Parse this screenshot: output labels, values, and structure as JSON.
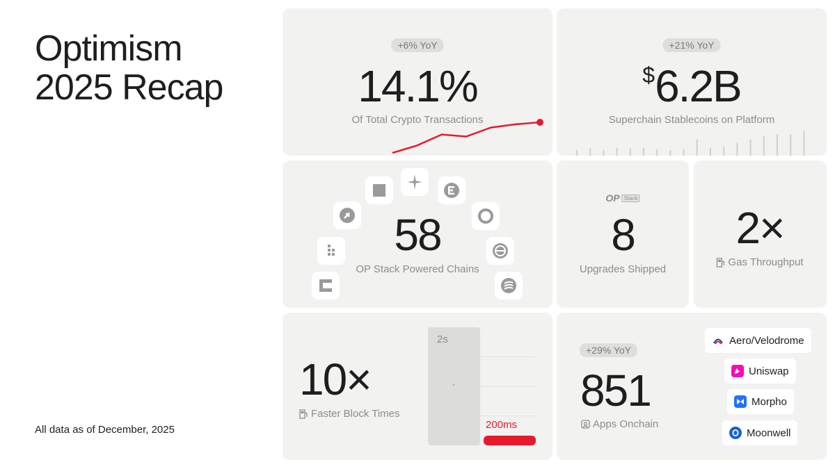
{
  "page": {
    "title_line1": "Optimism",
    "title_line2": "2025 Recap",
    "footnote": "All data as of December, 2025"
  },
  "colors": {
    "accent": "#e8192c",
    "card_bg": "#f2f2f1",
    "pill_bg": "#dededc"
  },
  "transactions": {
    "badge": "+6% YoY",
    "value": "14.1%",
    "label": "Of Total Crypto Transactions",
    "trend": [
      0.0,
      0.18,
      0.45,
      0.4,
      0.62,
      0.7,
      0.75
    ]
  },
  "stablecoins": {
    "badge": "+21% YoY",
    "currency": "$",
    "value": "6.2B",
    "label": "Superchain Stablecoins on Platform",
    "bars": [
      0.15,
      0.2,
      0.15,
      0.22,
      0.2,
      0.22,
      0.18,
      0.15,
      0.18,
      0.45,
      0.22,
      0.25,
      0.35,
      0.45,
      0.55,
      0.6,
      0.6,
      0.7,
      0.75,
      1.0
    ]
  },
  "chains": {
    "value": "58",
    "label": "OP Stack Powered Chains",
    "icons": [
      "square-logo-icon",
      "sparkle-logo-icon",
      "e-circle-logo-icon",
      "ring-logo-icon",
      "arrow-circle-logo-icon",
      "lines-circle-logo-icon",
      "dots-grid-logo-icon",
      "wave-logo-icon",
      "c-bracket-logo-icon"
    ]
  },
  "upgrades": {
    "logo_op": "OP",
    "logo_stack": "Stack",
    "value": "8",
    "label": "Upgrades Shipped"
  },
  "gas": {
    "value": "2×",
    "label": "Gas Throughput"
  },
  "blocktimes": {
    "value": "10×",
    "label": "Faster Block Times",
    "before_label": "2s",
    "dash": "-",
    "after_label": "200ms",
    "before_ms": 2000,
    "after_ms": 200
  },
  "apps": {
    "badge": "+29% YoY",
    "value": "851",
    "label": "Apps Onchain",
    "list": [
      {
        "name": "Aero/Velodrome",
        "color": "#ffffff"
      },
      {
        "name": "Uniswap",
        "color": "#f50db4"
      },
      {
        "name": "Morpho",
        "color": "#2470ff"
      },
      {
        "name": "Moonwell",
        "color": "#1a5fd6"
      }
    ]
  }
}
